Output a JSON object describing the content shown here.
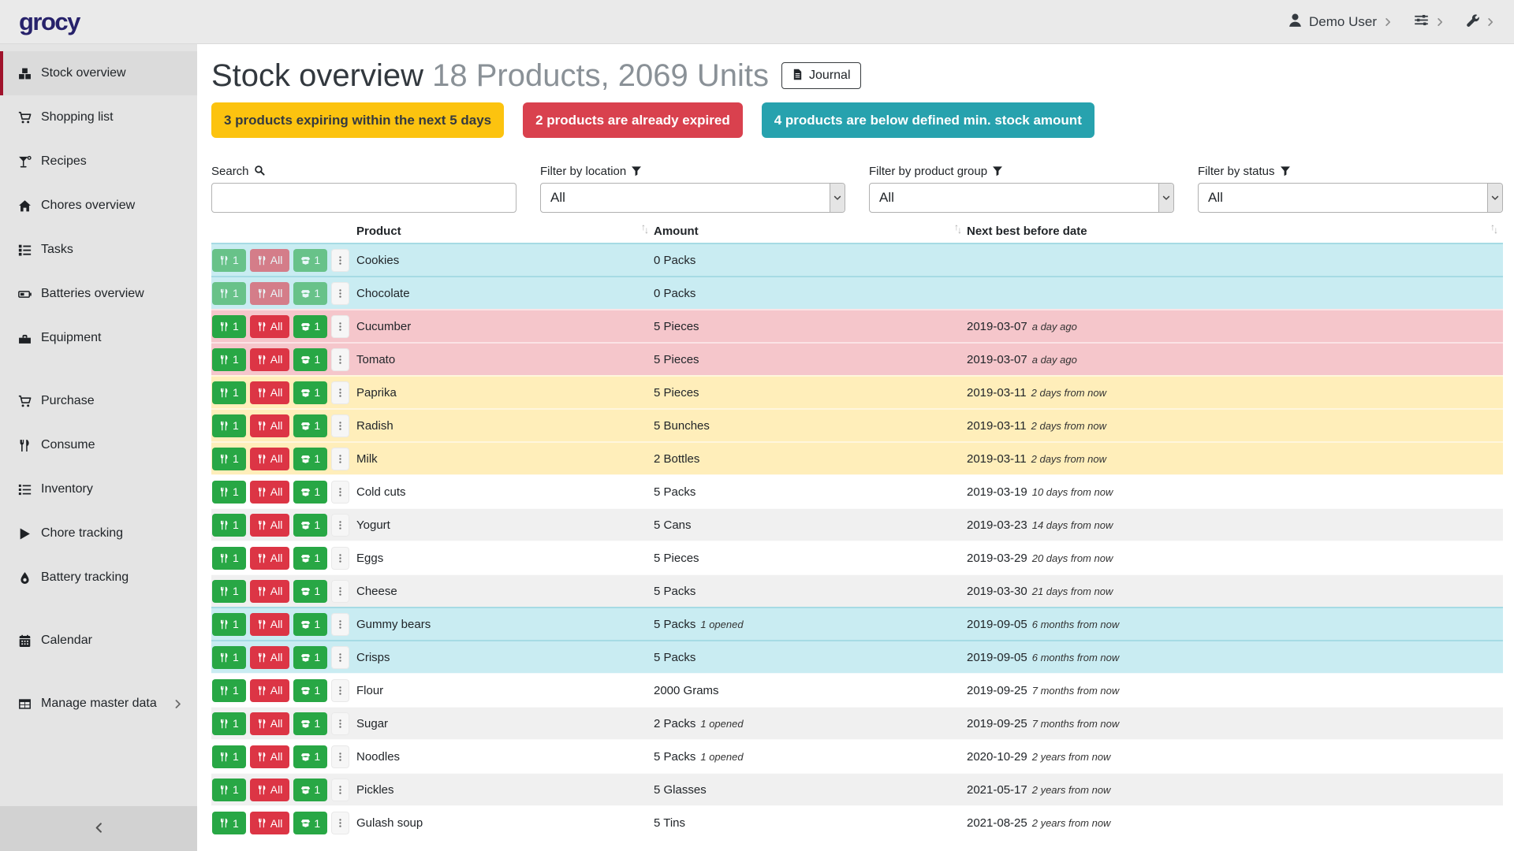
{
  "colors": {
    "accent_red": "#a0122b",
    "logo": "#27226b",
    "badge_warning_bg": "#fcc30f",
    "badge_warning_text": "#343a40",
    "badge_danger_bg": "#d9414e",
    "badge_info_bg": "#27a2ae",
    "row_below_min_stock": "#c9ecf2",
    "row_expired": "#f5c6cb",
    "row_expiring": "#ffeeba",
    "button_green": "#28a745",
    "button_red": "#dc3545"
  },
  "navbar": {
    "logo_text": "grocy",
    "user_menu": {
      "icon": "user-icon",
      "label": "Demo User",
      "chevron_icon": "chevron-right-icon"
    },
    "settings_menu": {
      "icon": "sliders-icon",
      "chevron_icon": "chevron-right-icon"
    },
    "admin_menu": {
      "icon": "wrench-icon",
      "chevron_icon": "chevron-right-icon"
    }
  },
  "sidebar": {
    "groups": [
      {
        "items": [
          {
            "label": "Stock overview",
            "icon": "boxes-icon",
            "active": true
          },
          {
            "label": "Shopping list",
            "icon": "cart-icon"
          },
          {
            "label": "Recipes",
            "icon": "cocktail-icon"
          },
          {
            "label": "Chores overview",
            "icon": "home-icon"
          },
          {
            "label": "Tasks",
            "icon": "tasks-icon"
          },
          {
            "label": "Batteries overview",
            "icon": "battery-icon"
          },
          {
            "label": "Equipment",
            "icon": "toolbox-icon"
          }
        ]
      },
      {
        "items": [
          {
            "label": "Purchase",
            "icon": "cart-icon"
          },
          {
            "label": "Consume",
            "icon": "utensils-icon"
          },
          {
            "label": "Inventory",
            "icon": "list-icon"
          },
          {
            "label": "Chore tracking",
            "icon": "play-icon"
          },
          {
            "label": "Battery tracking",
            "icon": "droplet-icon"
          }
        ]
      },
      {
        "items": [
          {
            "label": "Calendar",
            "icon": "calendar-icon"
          }
        ]
      },
      {
        "items": [
          {
            "label": "Manage master data",
            "icon": "table-icon",
            "chevron": "chevron-right-icon"
          }
        ]
      }
    ],
    "collapse_icon": "chevron-left-icon"
  },
  "header": {
    "title": "Stock overview",
    "subtitle": "18 Products, 2069 Units",
    "journal_button": {
      "label": "Journal",
      "icon": "file-icon"
    }
  },
  "badges": [
    {
      "type": "warning",
      "text": "3 products expiring within the next 5 days"
    },
    {
      "type": "danger",
      "text": "2 products are already expired"
    },
    {
      "type": "info",
      "text": "4 products are below defined min. stock amount"
    }
  ],
  "filters": {
    "search": {
      "label": "Search",
      "icon": "search-icon",
      "value": "",
      "placeholder": ""
    },
    "selects": [
      {
        "label": "Filter by location",
        "icon": "filter-icon",
        "value": "All"
      },
      {
        "label": "Filter by product group",
        "icon": "filter-icon",
        "value": "All"
      },
      {
        "label": "Filter by status",
        "icon": "filter-icon",
        "value": "All"
      }
    ]
  },
  "table": {
    "columns": [
      {
        "label": "",
        "sortable": false
      },
      {
        "label": "Product",
        "sortable": true
      },
      {
        "label": "Amount",
        "sortable": true
      },
      {
        "label": "Next best before date",
        "sortable": true
      }
    ],
    "row_actions": [
      {
        "name": "consume-one-button",
        "icon": "utensils-icon",
        "label": "1",
        "style": "green"
      },
      {
        "name": "consume-all-button",
        "icon": "utensils-icon",
        "label": "All",
        "style": "red"
      },
      {
        "name": "open-one-button",
        "icon": "box-open-icon",
        "label": "1",
        "style": "green"
      },
      {
        "name": "more-actions-button",
        "icon": "ellipsis-v-icon",
        "label": "",
        "style": "light"
      }
    ],
    "rows": [
      {
        "product": "Cookies",
        "amount": "0 Packs",
        "amount_note": "",
        "date": "",
        "date_note": "",
        "status": "below-min",
        "disabled": true
      },
      {
        "product": "Chocolate",
        "amount": "0 Packs",
        "amount_note": "",
        "date": "",
        "date_note": "",
        "status": "below-min",
        "disabled": true
      },
      {
        "product": "Cucumber",
        "amount": "5 Pieces",
        "amount_note": "",
        "date": "2019-03-07",
        "date_note": "a day ago",
        "status": "expired"
      },
      {
        "product": "Tomato",
        "amount": "5 Pieces",
        "amount_note": "",
        "date": "2019-03-07",
        "date_note": "a day ago",
        "status": "expired"
      },
      {
        "product": "Paprika",
        "amount": "5 Pieces",
        "amount_note": "",
        "date": "2019-03-11",
        "date_note": "2 days from now",
        "status": "expiring"
      },
      {
        "product": "Radish",
        "amount": "5 Bunches",
        "amount_note": "",
        "date": "2019-03-11",
        "date_note": "2 days from now",
        "status": "expiring"
      },
      {
        "product": "Milk",
        "amount": "2 Bottles",
        "amount_note": "",
        "date": "2019-03-11",
        "date_note": "2 days from now",
        "status": "expiring"
      },
      {
        "product": "Cold cuts",
        "amount": "5 Packs",
        "amount_note": "",
        "date": "2019-03-19",
        "date_note": "10 days from now",
        "status": "none"
      },
      {
        "product": "Yogurt",
        "amount": "5 Cans",
        "amount_note": "",
        "date": "2019-03-23",
        "date_note": "14 days from now",
        "status": "none"
      },
      {
        "product": "Eggs",
        "amount": "5 Pieces",
        "amount_note": "",
        "date": "2019-03-29",
        "date_note": "20 days from now",
        "status": "none"
      },
      {
        "product": "Cheese",
        "amount": "5 Packs",
        "amount_note": "",
        "date": "2019-03-30",
        "date_note": "21 days from now",
        "status": "none"
      },
      {
        "product": "Gummy bears",
        "amount": "5 Packs",
        "amount_note": "1 opened",
        "date": "2019-09-05",
        "date_note": "6 months from now",
        "status": "below-min"
      },
      {
        "product": "Crisps",
        "amount": "5 Packs",
        "amount_note": "",
        "date": "2019-09-05",
        "date_note": "6 months from now",
        "status": "below-min"
      },
      {
        "product": "Flour",
        "amount": "2000 Grams",
        "amount_note": "",
        "date": "2019-09-25",
        "date_note": "7 months from now",
        "status": "none"
      },
      {
        "product": "Sugar",
        "amount": "2 Packs",
        "amount_note": "1 opened",
        "date": "2019-09-25",
        "date_note": "7 months from now",
        "status": "none"
      },
      {
        "product": "Noodles",
        "amount": "5 Packs",
        "amount_note": "1 opened",
        "date": "2020-10-29",
        "date_note": "2 years from now",
        "status": "none"
      },
      {
        "product": "Pickles",
        "amount": "5 Glasses",
        "amount_note": "",
        "date": "2021-05-17",
        "date_note": "2 years from now",
        "status": "none"
      },
      {
        "product": "Gulash soup",
        "amount": "5 Tins",
        "amount_note": "",
        "date": "2021-08-25",
        "date_note": "2 years from now",
        "status": "none"
      }
    ]
  }
}
